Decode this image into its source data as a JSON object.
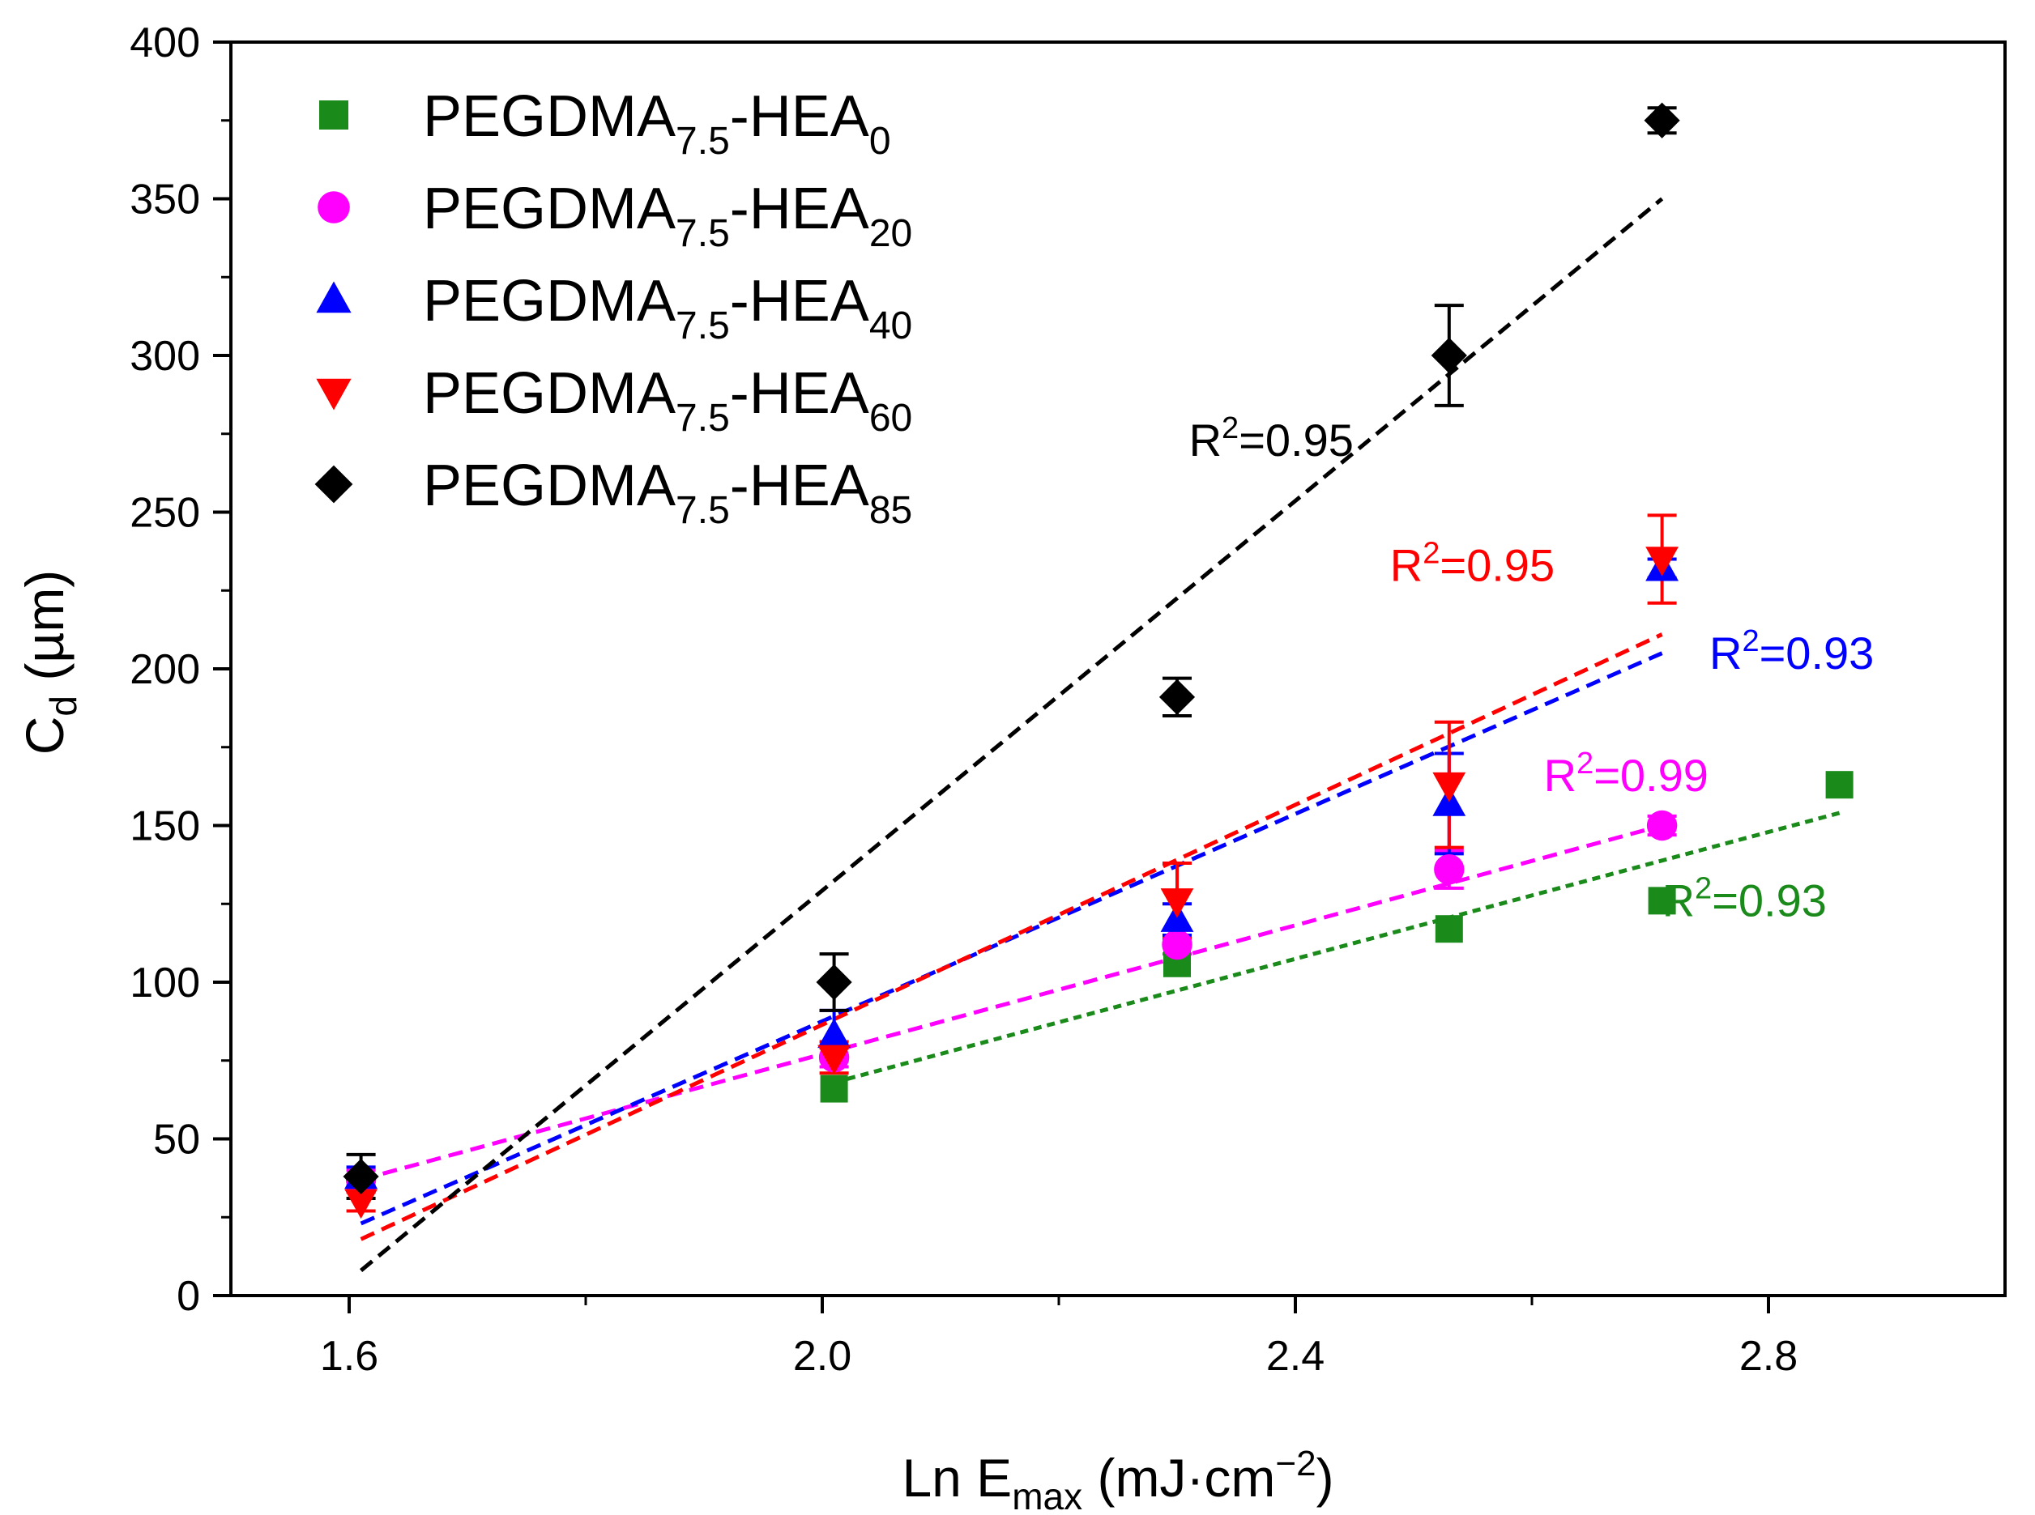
{
  "chart_data": {
    "type": "scatter",
    "xlabel": {
      "main": "Ln E",
      "sub": "max",
      "units_pre": " (mJ·cm",
      "sup": "−2",
      "units_post": ")"
    },
    "ylabel": {
      "main": "C",
      "sub": "d",
      "units": " (µm)"
    },
    "xlim": [
      1.5,
      3.0
    ],
    "ylim": [
      0,
      400
    ],
    "xticks": [
      1.6,
      2.0,
      2.4,
      2.8
    ],
    "xtick_labels": [
      "1.6",
      "2.0",
      "2.4",
      "2.8"
    ],
    "yticks": [
      0,
      50,
      100,
      150,
      200,
      250,
      300,
      350,
      400
    ],
    "ytick_labels": [
      "0",
      "50",
      "100",
      "150",
      "200",
      "250",
      "300",
      "350",
      "400"
    ],
    "grid": false,
    "legend_position": "top-left",
    "series": [
      {
        "name": "PEGDMA7.5-HEA0",
        "legend_main": "PEGDMA",
        "legend_sub1": "7.5",
        "legend_mid": "-HEA",
        "legend_sub2": "0",
        "marker": "square",
        "color": "#1a8a1a",
        "x": [
          2.01,
          2.3,
          2.53,
          2.71,
          2.86
        ],
        "y": [
          66,
          106,
          117,
          126,
          163
        ],
        "err": [
          0,
          0,
          0,
          0,
          0
        ],
        "fit": {
          "x": [
            2.01,
            2.86
          ],
          "y": [
            68,
            154
          ]
        },
        "r2": {
          "prefix": "R",
          "sup": "2",
          "value": "=0.93",
          "x": 2.71,
          "y": 121
        }
      },
      {
        "name": "PEGDMA7.5-HEA20",
        "legend_main": "PEGDMA",
        "legend_sub1": "7.5",
        "legend_mid": "-HEA",
        "legend_sub2": "20",
        "marker": "circle",
        "color": "#ff00ff",
        "x": [
          1.61,
          2.01,
          2.3,
          2.53,
          2.71
        ],
        "y": [
          37,
          76,
          112,
          136,
          150
        ],
        "err": [
          3,
          3,
          3,
          6,
          3
        ],
        "fit": {
          "x": [
            1.61,
            2.71
          ],
          "y": [
            37,
            150
          ]
        },
        "r2": {
          "prefix": "R",
          "sup": "2",
          "value": "=0.99",
          "x": 2.61,
          "y": 161
        }
      },
      {
        "name": "PEGDMA7.5-HEA40",
        "legend_main": "PEGDMA",
        "legend_sub1": "7.5",
        "legend_mid": "-HEA",
        "legend_sub2": "40",
        "marker": "triangle-up",
        "color": "#0000ff",
        "x": [
          1.61,
          2.01,
          2.3,
          2.53,
          2.71
        ],
        "y": [
          38,
          83,
          120,
          157,
          232
        ],
        "err": [
          3,
          8,
          5,
          16,
          3
        ],
        "fit": {
          "x": [
            1.61,
            2.71
          ],
          "y": [
            23,
            205
          ]
        },
        "r2": {
          "prefix": "R",
          "sup": "2",
          "value": "=0.93",
          "x": 2.75,
          "y": 200
        }
      },
      {
        "name": "PEGDMA7.5-HEA60",
        "legend_main": "PEGDMA",
        "legend_sub1": "7.5",
        "legend_mid": "-HEA",
        "legend_sub2": "60",
        "marker": "triangle-down",
        "color": "#ff0000",
        "x": [
          1.61,
          2.01,
          2.3,
          2.53,
          2.71
        ],
        "y": [
          30,
          76,
          126,
          163,
          235
        ],
        "err": [
          3,
          5,
          12,
          20,
          14
        ],
        "fit": {
          "x": [
            1.61,
            2.71
          ],
          "y": [
            18,
            211
          ]
        },
        "r2": {
          "prefix": "R",
          "sup": "2",
          "value": "=0.95",
          "x": 2.48,
          "y": 228
        }
      },
      {
        "name": "PEGDMA7.5-HEA85",
        "legend_main": "PEGDMA",
        "legend_sub1": "7.5",
        "legend_mid": "-HEA",
        "legend_sub2": "85",
        "marker": "diamond",
        "color": "#000000",
        "x": [
          1.61,
          2.01,
          2.3,
          2.53,
          2.71
        ],
        "y": [
          38,
          100,
          191,
          300,
          375
        ],
        "err": [
          7,
          9,
          6,
          16,
          4
        ],
        "fit": {
          "x": [
            1.61,
            2.71
          ],
          "y": [
            8,
            350
          ]
        },
        "r2": {
          "prefix": "R",
          "sup": "2",
          "value": "=0.95",
          "x": 2.31,
          "y": 268
        }
      }
    ]
  }
}
